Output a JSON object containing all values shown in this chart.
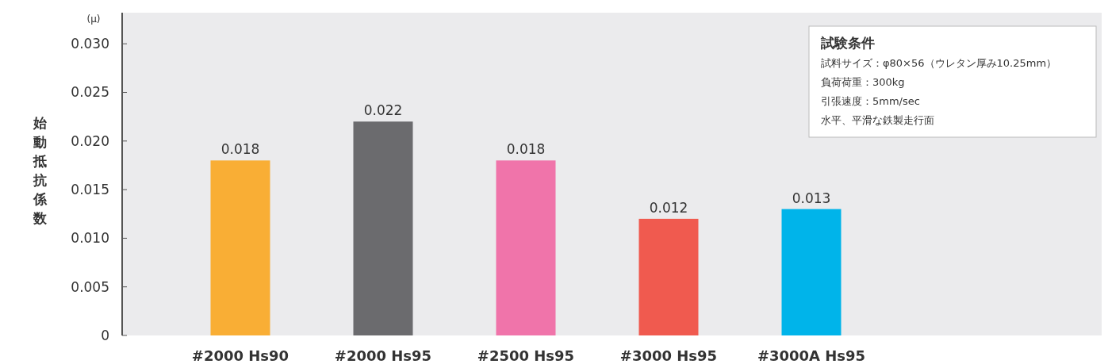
{
  "chart_data": {
    "type": "bar",
    "ylabel": "始動抵抗係数",
    "categories": [
      "#2000 Hs90",
      "#2000 Hs95",
      "#2500 Hs95",
      "#3000 Hs95",
      "#3000A Hs95"
    ],
    "values": [
      0.018,
      0.022,
      0.018,
      0.012,
      0.013
    ],
    "colors": [
      "#f9ae35",
      "#6b6b6e",
      "#f074aa",
      "#f05a4f",
      "#00b4ea"
    ],
    "ylim": [
      0,
      0.0332
    ],
    "yticks": [
      0,
      {
        "value": 0.005,
        "label": "0.005"
      },
      {
        "value": 0.01,
        "label": "0.010"
      },
      {
        "value": 0.015,
        "label": "0.015"
      },
      {
        "value": 0.02,
        "label": "0.020"
      },
      {
        "value": 0.025,
        "label": "0.025"
      },
      {
        "value": 0.03,
        "label": "0.030"
      }
    ],
    "data_labels": true,
    "grid": false,
    "annotations": [
      "(μ)",
      "試験条件",
      "試料サイズ：φ80×56（ウレタン厚み10.25mm）",
      "負荷荷重：300kg",
      "引張速度：5mm/sec",
      "水平、平滑な鉄製走行面"
    ]
  }
}
